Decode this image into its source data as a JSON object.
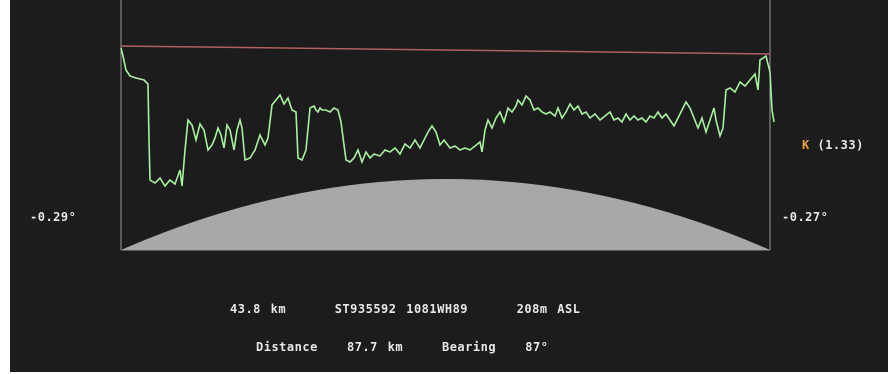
{
  "profile": {
    "left_angle": "-0.29°",
    "right_angle": "-0.27°",
    "k_letter": "K",
    "k_value": " (1.33)"
  },
  "info": {
    "distance_along": "43.8 km",
    "grid_ref": "ST935592 1081WH89",
    "elevation": "208m ASL",
    "distance_label": "Distance",
    "distance_value": "87.7 km",
    "bearing_label": "Bearing",
    "bearing_value": "87°"
  },
  "colors": {
    "background": "#1c1c1c",
    "terrain_line": "#a8f0a0",
    "sightline": "#b06060",
    "earth_bulge": "#a8a8a8",
    "frame": "#9a9a9a",
    "k_letter": "#f0a040"
  }
}
